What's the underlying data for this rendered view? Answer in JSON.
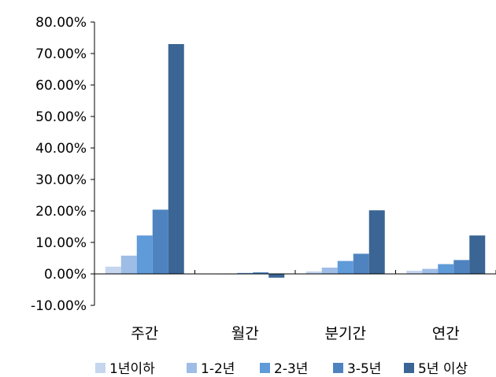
{
  "chart_data": {
    "type": "bar",
    "categories": [
      "주간",
      "월간",
      "분기간",
      "연간"
    ],
    "series": [
      {
        "name": "1년이하",
        "color": "#c5d6ee",
        "values": [
          2.3,
          0.0,
          0.8,
          1.0
        ]
      },
      {
        "name": "1-2년",
        "color": "#9dbde6",
        "values": [
          5.8,
          0.0,
          2.0,
          1.6
        ]
      },
      {
        "name": "2-3년",
        "color": "#5f9ad9",
        "values": [
          12.2,
          0.3,
          4.1,
          3.1
        ]
      },
      {
        "name": "3-5년",
        "color": "#4e83bf",
        "values": [
          20.4,
          0.5,
          6.4,
          4.4
        ]
      },
      {
        "name": "5년 이상",
        "color": "#3a6594",
        "values": [
          73.0,
          -1.2,
          20.2,
          12.2
        ]
      }
    ],
    "y_ticks": [
      "-10.00%",
      "0.00%",
      "10.00%",
      "20.00%",
      "30.00%",
      "40.00%",
      "50.00%",
      "60.00%",
      "70.00%",
      "80.00%"
    ],
    "ylim": [
      -10,
      80
    ],
    "legend_position": "bottom",
    "grid": false
  }
}
